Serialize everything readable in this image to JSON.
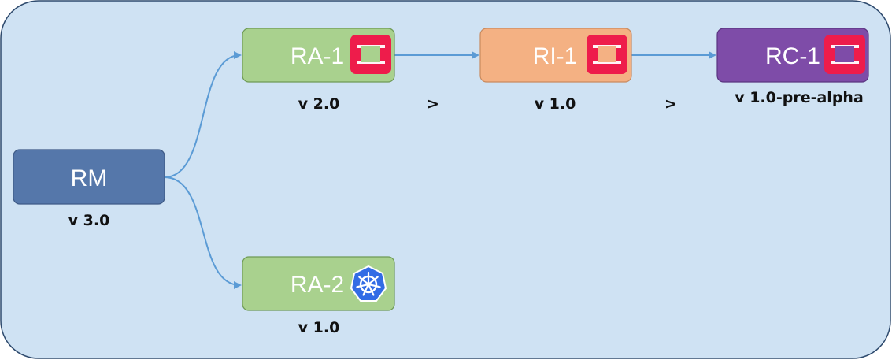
{
  "colors": {
    "container_fill": "#cfe2f3",
    "container_stroke": "#2f4b6e",
    "rm": "#5577aa",
    "ra": "#a9d18e",
    "ri": "#f4b183",
    "rc": "#7e4ca8",
    "connector": "#5b9bd5",
    "openstack": "#ee1c4b",
    "kubernetes": "#326ce5"
  },
  "nodes": {
    "rm": {
      "label": "RM",
      "version": "v 3.0"
    },
    "ra1": {
      "label": "RA-1",
      "version": "v 2.0",
      "icon": "openstack-icon"
    },
    "ri1": {
      "label": "RI-1",
      "version": "v 1.0",
      "icon": "openstack-icon"
    },
    "rc1": {
      "label": "RC-1",
      "version": "v 1.0-pre-alpha",
      "icon": "openstack-icon"
    },
    "ra2": {
      "label": "RA-2",
      "version": "v 1.0",
      "icon": "kubernetes-icon"
    }
  },
  "separators": [
    ">",
    ">"
  ]
}
